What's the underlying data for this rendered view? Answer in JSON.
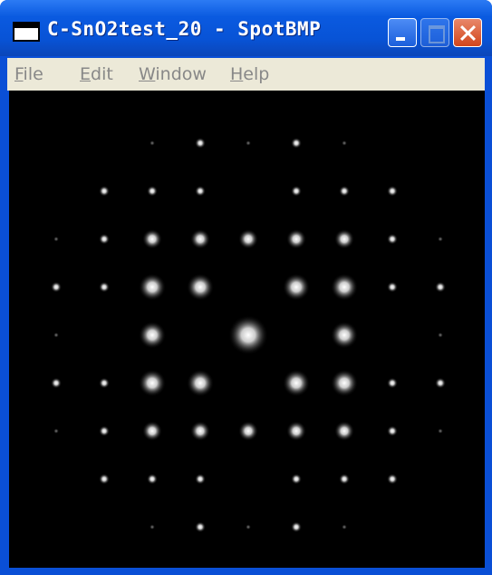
{
  "window": {
    "title": "C-SnO2test_20 - SpotBMP",
    "menu": [
      "File",
      "Edit",
      "Window",
      "Help"
    ]
  }
}
